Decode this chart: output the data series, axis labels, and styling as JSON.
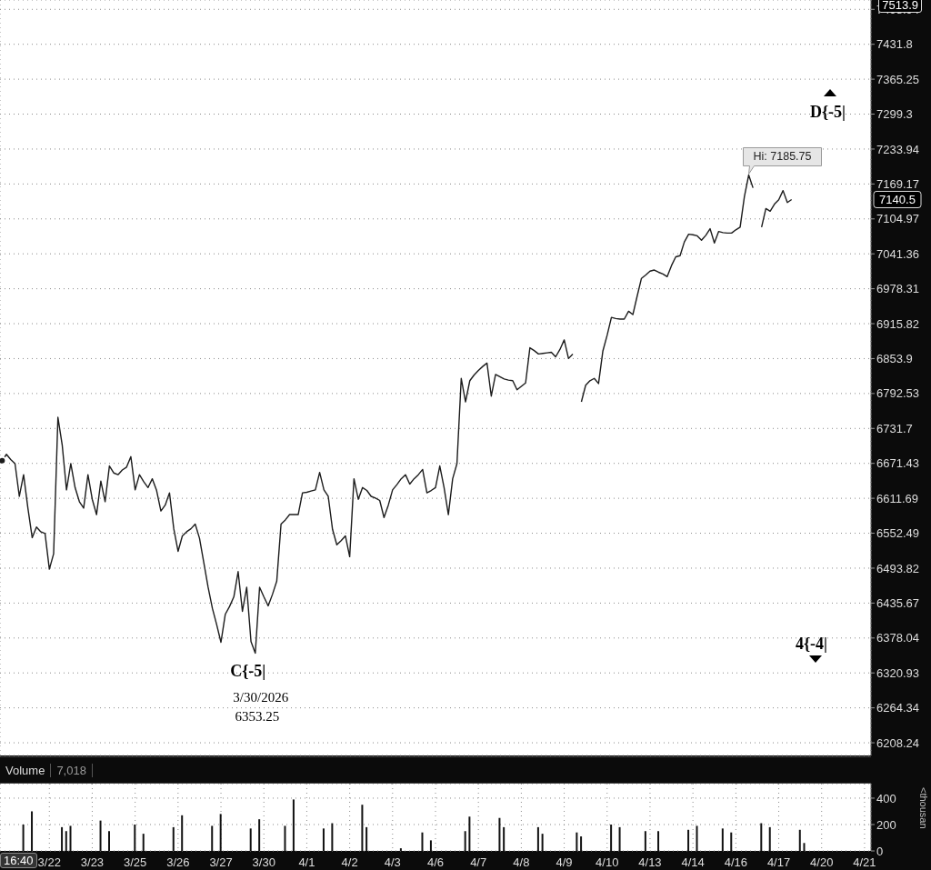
{
  "chart_data": [
    {
      "type": "line",
      "log": true,
      "grid": true,
      "tick_labels": "y",
      "categories": [
        null,
        null,
        null,
        null,
        null,
        null,
        null,
        null,
        null,
        null,
        null,
        null,
        null,
        null,
        null,
        null,
        null,
        null,
        null,
        null,
        null,
        null,
        null,
        null,
        null,
        null,
        null,
        null,
        null,
        null,
        null,
        null,
        null,
        null,
        null,
        null,
        null,
        null,
        null,
        null,
        null,
        null,
        null,
        null,
        null,
        null,
        null,
        null,
        null,
        null,
        null,
        null,
        null,
        null,
        null,
        null,
        null,
        null,
        null,
        null,
        null,
        null,
        null,
        null,
        null,
        null,
        null,
        null,
        null,
        null,
        null,
        null,
        null,
        null,
        null,
        null,
        null,
        null,
        null,
        null,
        null,
        null,
        null,
        null,
        null,
        null,
        null,
        null,
        null,
        null,
        null,
        null,
        null,
        null,
        null,
        null,
        null,
        null,
        null,
        null,
        null,
        null,
        null,
        null,
        null,
        null,
        null,
        null,
        null,
        null,
        null,
        null,
        null,
        null,
        null,
        null,
        null,
        null,
        null,
        null,
        null,
        null,
        null,
        null,
        null,
        null,
        null,
        null,
        null,
        null,
        null,
        null,
        null,
        null,
        null,
        null,
        null,
        null,
        null,
        null,
        null,
        null,
        null,
        null,
        null,
        null,
        null,
        null,
        null,
        null,
        null,
        null,
        null,
        null,
        null,
        null,
        null,
        null,
        null,
        null,
        null,
        null,
        null,
        null,
        null,
        null,
        null,
        null,
        null,
        null,
        null,
        null,
        null,
        null,
        null,
        null,
        null,
        null,
        null,
        null,
        null,
        null,
        null,
        null,
        null,
        null,
        null,
        null,
        null,
        null,
        null,
        null,
        null,
        null,
        null,
        null,
        null,
        null,
        null,
        null,
        null,
        null,
        null
      ],
      "ylim": [
        6188,
        7517
      ],
      "yticks": [
        6208.24,
        6264.34,
        6320.93,
        6378.04,
        6435.67,
        6493.82,
        6552.49,
        6611.69,
        6671.43,
        6731.7,
        6792.53,
        6853.9,
        6915.82,
        6978.31,
        7041.36,
        7104.97,
        7169.17,
        7233.94,
        7299.3,
        7365.25,
        7431.8,
        7498.94
      ],
      "series": [
        {
          "color": "#1c1c1c",
          "values": [
            6676,
            6687,
            6678,
            6671,
            6615,
            6652,
            6595,
            6545,
            6563,
            6555,
            6552,
            6492,
            6518,
            6751,
            6703,
            6626,
            6671,
            6630,
            6606,
            6595,
            6652,
            6610,
            6584,
            6641,
            6606,
            6667,
            6655,
            6652,
            6660,
            6665,
            6683,
            6626,
            6652,
            6640,
            6630,
            6645,
            6625,
            6590,
            6600,
            6621,
            6560,
            6522,
            6548,
            6555,
            6560,
            6568,
            6544,
            6503,
            6462,
            6427,
            6400,
            6371,
            6417,
            6430,
            6446,
            6488,
            6422,
            6462,
            6372,
            6353.25,
            6462,
            6446,
            6431,
            6450,
            6472,
            6568,
            6575,
            6584,
            6584,
            6584,
            6621,
            6622,
            6624,
            6626,
            6656,
            6626,
            6615,
            6559,
            6533,
            6540,
            6548,
            6513,
            6645,
            6610,
            6630,
            6625,
            6615,
            6612,
            6608,
            6579,
            6600,
            6626,
            6635,
            6645,
            6652,
            6636,
            6645,
            6652,
            6661,
            6621,
            6625,
            6630,
            6667,
            6630,
            6584,
            6645,
            6671,
            6819,
            6778,
            6815,
            6825,
            6833,
            6840,
            6846,
            6788,
            6826,
            6822,
            6818,
            6816,
            6815,
            6799,
            6805,
            6811,
            6873,
            6868,
            6862,
            6863,
            6864,
            6865,
            6857,
            6870,
            6887,
            6854,
            6862,
            null,
            null,
            null,
            null,
            null,
            null,
            null,
            null,
            null,
            null,
            null,
            null,
            null,
            null,
            null,
            null,
            null,
            null,
            null,
            null,
            null,
            null,
            null,
            null,
            null,
            null,
            null,
            null,
            null,
            null,
            null,
            null,
            null,
            null,
            null,
            null,
            null,
            null,
            null,
            null,
            null,
            null,
            null,
            null,
            null,
            null,
            null,
            null,
            null,
            null,
            null,
            null,
            null,
            null,
            null,
            null,
            null,
            null,
            null,
            null,
            null,
            null,
            null,
            null,
            null,
            null,
            null,
            null,
            null
          ]
        },
        {
          "color": "#1c1c1c",
          "values": [
            null,
            null,
            null,
            null,
            null,
            null,
            null,
            null,
            null,
            null,
            null,
            null,
            null,
            null,
            null,
            null,
            null,
            null,
            null,
            null,
            null,
            null,
            null,
            null,
            null,
            null,
            null,
            null,
            null,
            null,
            null,
            null,
            null,
            null,
            null,
            null,
            null,
            null,
            null,
            null,
            null,
            null,
            null,
            null,
            null,
            null,
            null,
            null,
            null,
            null,
            null,
            null,
            null,
            null,
            null,
            null,
            null,
            null,
            null,
            null,
            null,
            null,
            null,
            null,
            null,
            null,
            null,
            null,
            null,
            null,
            null,
            null,
            null,
            null,
            null,
            null,
            null,
            null,
            null,
            null,
            null,
            null,
            null,
            null,
            null,
            null,
            null,
            null,
            null,
            null,
            null,
            null,
            null,
            null,
            null,
            null,
            null,
            null,
            null,
            null,
            null,
            null,
            null,
            null,
            null,
            null,
            null,
            null,
            null,
            null,
            null,
            null,
            null,
            null,
            null,
            null,
            null,
            null,
            null,
            null,
            null,
            null,
            null,
            null,
            null,
            null,
            null,
            null,
            null,
            null,
            null,
            null,
            null,
            null,
            null,
            6778,
            6807,
            6815,
            6819,
            6810,
            6867,
            6895,
            6927,
            6925,
            6924,
            6924,
            6938,
            6932,
            6965,
            6997,
            7003,
            7010,
            7012,
            7008,
            7005,
            7000,
            7020,
            7036,
            7038,
            7063,
            7077,
            7076,
            7074,
            7066,
            7075,
            7087,
            7061,
            7082,
            7080,
            7079,
            7079,
            7085,
            7090,
            7146,
            7185.75,
            7162,
            null,
            null,
            null,
            null,
            null,
            null,
            null,
            null,
            null,
            null,
            null,
            null,
            null,
            null,
            null,
            null,
            null,
            null,
            null,
            null,
            null,
            null,
            null,
            null,
            null,
            null,
            null
          ]
        },
        {
          "color": "#1c1c1c",
          "values": [
            null,
            null,
            null,
            null,
            null,
            null,
            null,
            null,
            null,
            null,
            null,
            null,
            null,
            null,
            null,
            null,
            null,
            null,
            null,
            null,
            null,
            null,
            null,
            null,
            null,
            null,
            null,
            null,
            null,
            null,
            null,
            null,
            null,
            null,
            null,
            null,
            null,
            null,
            null,
            null,
            null,
            null,
            null,
            null,
            null,
            null,
            null,
            null,
            null,
            null,
            null,
            null,
            null,
            null,
            null,
            null,
            null,
            null,
            null,
            null,
            null,
            null,
            null,
            null,
            null,
            null,
            null,
            null,
            null,
            null,
            null,
            null,
            null,
            null,
            null,
            null,
            null,
            null,
            null,
            null,
            null,
            null,
            null,
            null,
            null,
            null,
            null,
            null,
            null,
            null,
            null,
            null,
            null,
            null,
            null,
            null,
            null,
            null,
            null,
            null,
            null,
            null,
            null,
            null,
            null,
            null,
            null,
            null,
            null,
            null,
            null,
            null,
            null,
            null,
            null,
            null,
            null,
            null,
            null,
            null,
            null,
            null,
            null,
            null,
            null,
            null,
            null,
            null,
            null,
            null,
            null,
            null,
            null,
            null,
            null,
            null,
            null,
            null,
            null,
            null,
            null,
            null,
            null,
            null,
            null,
            null,
            null,
            null,
            null,
            null,
            null,
            null,
            null,
            null,
            null,
            null,
            null,
            null,
            null,
            null,
            null,
            null,
            null,
            null,
            null,
            null,
            null,
            null,
            null,
            null,
            null,
            null,
            null,
            null,
            null,
            null,
            null,
            7090,
            7124,
            7119,
            7132,
            7140,
            7157,
            7135,
            7140.5,
            null,
            null,
            null,
            null,
            null,
            null,
            null,
            null,
            null,
            null,
            null,
            null,
            null,
            null,
            null,
            null,
            null,
            null
          ]
        }
      ],
      "annotations": [
        "C{-5|",
        "Hi: 7185.75",
        "3/30/2026",
        "6353.25",
        "D{-5|",
        "4{-4|",
        "7140.5",
        "7513.9"
      ]
    },
    {
      "type": "bar",
      "title": "Volume",
      "ylabel": "<thousan",
      "color": "#111111",
      "grid": true,
      "categories": [
        null,
        null,
        null,
        null,
        null,
        null,
        null,
        null,
        null,
        null,
        null,
        "3/22",
        null,
        null,
        null,
        null,
        null,
        null,
        null,
        null,
        null,
        "3/23",
        null,
        null,
        null,
        null,
        null,
        null,
        null,
        null,
        null,
        "3/25",
        null,
        null,
        null,
        null,
        null,
        null,
        null,
        null,
        null,
        "3/26",
        null,
        null,
        null,
        null,
        null,
        null,
        null,
        null,
        null,
        "3/27",
        null,
        null,
        null,
        null,
        null,
        null,
        null,
        null,
        null,
        "3/30",
        null,
        null,
        null,
        null,
        null,
        null,
        null,
        null,
        null,
        "4/1",
        null,
        null,
        null,
        null,
        null,
        null,
        null,
        null,
        null,
        "4/2",
        null,
        null,
        null,
        null,
        null,
        null,
        null,
        null,
        null,
        "4/3",
        null,
        null,
        null,
        null,
        null,
        null,
        null,
        null,
        null,
        "4/6",
        null,
        null,
        null,
        null,
        null,
        null,
        null,
        null,
        null,
        "4/7",
        null,
        null,
        null,
        null,
        null,
        null,
        null,
        null,
        null,
        "4/8",
        null,
        null,
        null,
        null,
        null,
        null,
        null,
        null,
        null,
        "4/9",
        null,
        null,
        null,
        null,
        null,
        null,
        null,
        null,
        null,
        "4/10",
        null,
        null,
        null,
        null,
        null,
        null,
        null,
        null,
        null,
        "4/13",
        null,
        null,
        null,
        null,
        null,
        null,
        null,
        null,
        null,
        "4/14",
        null,
        null,
        null,
        null,
        null,
        null,
        null,
        null,
        null,
        "4/16",
        null,
        null,
        null,
        null,
        null,
        null,
        null,
        null,
        null,
        "4/17",
        null,
        null,
        null,
        null,
        null,
        null,
        null,
        null,
        null,
        "4/20",
        null,
        null,
        null,
        null,
        null,
        null,
        null,
        null,
        null,
        "4/21",
        null
      ],
      "ylim": [
        0,
        510
      ],
      "yticks": [
        0,
        200,
        400
      ],
      "values": [
        null,
        null,
        null,
        null,
        null,
        200,
        null,
        300,
        null,
        null,
        null,
        null,
        null,
        null,
        180,
        150,
        190,
        null,
        null,
        null,
        null,
        null,
        null,
        230,
        null,
        150,
        null,
        null,
        null,
        null,
        null,
        200,
        null,
        130,
        null,
        null,
        null,
        null,
        null,
        null,
        180,
        null,
        270,
        null,
        null,
        null,
        null,
        null,
        null,
        190,
        null,
        280,
        null,
        null,
        null,
        null,
        null,
        null,
        170,
        null,
        240,
        null,
        null,
        null,
        null,
        null,
        190,
        null,
        390,
        null,
        null,
        null,
        null,
        null,
        null,
        170,
        null,
        210,
        null,
        null,
        null,
        null,
        null,
        null,
        350,
        180,
        null,
        null,
        null,
        null,
        null,
        null,
        null,
        20,
        null,
        null,
        null,
        null,
        140,
        null,
        80,
        null,
        null,
        null,
        null,
        null,
        null,
        null,
        150,
        260,
        null,
        null,
        null,
        null,
        null,
        null,
        250,
        180,
        null,
        null,
        null,
        null,
        null,
        null,
        null,
        180,
        130,
        null,
        null,
        null,
        null,
        null,
        null,
        null,
        140,
        110,
        null,
        null,
        null,
        null,
        null,
        null,
        200,
        null,
        180,
        null,
        null,
        null,
        null,
        null,
        150,
        null,
        null,
        150,
        null,
        null,
        null,
        null,
        null,
        null,
        160,
        null,
        190,
        null,
        null,
        null,
        null,
        null,
        170,
        null,
        140,
        null,
        null,
        null,
        null,
        null,
        null,
        210,
        null,
        180,
        null,
        null,
        null,
        null,
        null,
        null,
        160,
        60,
        null,
        null,
        null,
        null,
        null,
        null,
        null,
        null,
        null,
        null,
        null,
        null,
        null,
        null,
        null
      ],
      "annotations": [
        "7,018",
        "16:40"
      ]
    }
  ]
}
